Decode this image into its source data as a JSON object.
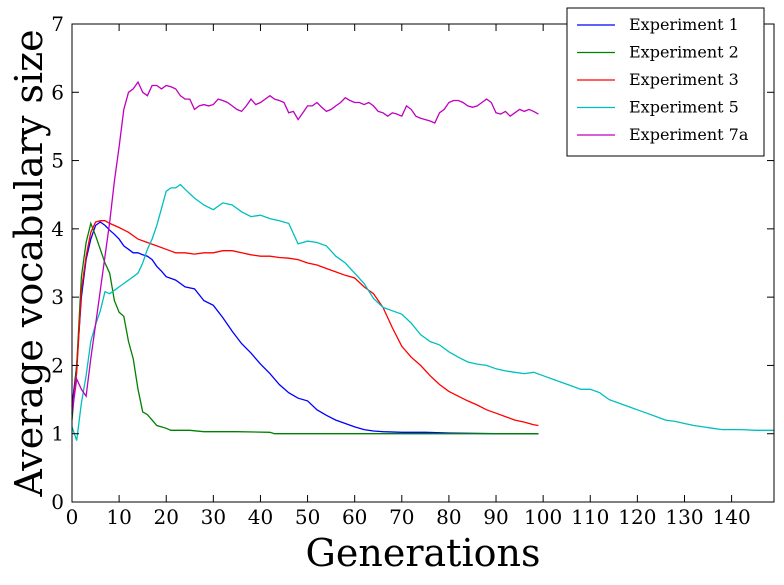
{
  "chart_data": {
    "type": "line",
    "xlabel": "Generations",
    "ylabel": "Average vocabulary size",
    "xlim": [
      0,
      149
    ],
    "ylim": [
      0,
      7
    ],
    "x_ticks": [
      0,
      10,
      20,
      30,
      40,
      50,
      60,
      70,
      80,
      90,
      100,
      110,
      120,
      130,
      140
    ],
    "y_ticks": [
      0,
      1,
      2,
      3,
      4,
      5,
      6,
      7
    ],
    "grid": false,
    "legend_position": "top-right",
    "series": [
      {
        "name": "Experiment 1",
        "color": "#0000ff",
        "points": [
          [
            0,
            1.4
          ],
          [
            1,
            2.0
          ],
          [
            2,
            3.0
          ],
          [
            3,
            3.55
          ],
          [
            4,
            3.85
          ],
          [
            5,
            4.05
          ],
          [
            6,
            4.1
          ],
          [
            7,
            4.05
          ],
          [
            8,
            3.98
          ],
          [
            9,
            3.92
          ],
          [
            10,
            3.85
          ],
          [
            11,
            3.75
          ],
          [
            12,
            3.7
          ],
          [
            13,
            3.65
          ],
          [
            14,
            3.65
          ],
          [
            15,
            3.62
          ],
          [
            16,
            3.6
          ],
          [
            17,
            3.55
          ],
          [
            18,
            3.45
          ],
          [
            19,
            3.38
          ],
          [
            20,
            3.3
          ],
          [
            22,
            3.25
          ],
          [
            24,
            3.15
          ],
          [
            26,
            3.12
          ],
          [
            28,
            2.95
          ],
          [
            30,
            2.88
          ],
          [
            32,
            2.7
          ],
          [
            34,
            2.5
          ],
          [
            36,
            2.32
          ],
          [
            38,
            2.18
          ],
          [
            40,
            2.02
          ],
          [
            42,
            1.88
          ],
          [
            44,
            1.72
          ],
          [
            46,
            1.6
          ],
          [
            48,
            1.52
          ],
          [
            50,
            1.48
          ],
          [
            52,
            1.35
          ],
          [
            54,
            1.27
          ],
          [
            56,
            1.2
          ],
          [
            58,
            1.15
          ],
          [
            60,
            1.1
          ],
          [
            62,
            1.06
          ],
          [
            64,
            1.04
          ],
          [
            66,
            1.03
          ],
          [
            70,
            1.02
          ],
          [
            75,
            1.02
          ],
          [
            80,
            1.01
          ],
          [
            90,
            1.0
          ],
          [
            99,
            1.0
          ]
        ]
      },
      {
        "name": "Experiment 2",
        "color": "#008000",
        "points": [
          [
            0,
            1.2
          ],
          [
            1,
            2.0
          ],
          [
            2,
            3.3
          ],
          [
            3,
            3.8
          ],
          [
            4,
            4.08
          ],
          [
            5,
            3.9
          ],
          [
            6,
            3.7
          ],
          [
            7,
            3.5
          ],
          [
            8,
            3.35
          ],
          [
            9,
            2.95
          ],
          [
            10,
            2.78
          ],
          [
            11,
            2.72
          ],
          [
            12,
            2.35
          ],
          [
            13,
            2.1
          ],
          [
            14,
            1.65
          ],
          [
            15,
            1.32
          ],
          [
            16,
            1.28
          ],
          [
            17,
            1.2
          ],
          [
            18,
            1.12
          ],
          [
            19,
            1.1
          ],
          [
            20,
            1.08
          ],
          [
            21,
            1.05
          ],
          [
            25,
            1.05
          ],
          [
            28,
            1.03
          ],
          [
            35,
            1.03
          ],
          [
            42,
            1.02
          ],
          [
            43,
            1.0
          ],
          [
            99,
            1.0
          ]
        ]
      },
      {
        "name": "Experiment 3",
        "color": "#ff0000",
        "points": [
          [
            0,
            1.3
          ],
          [
            1,
            1.9
          ],
          [
            2,
            3.1
          ],
          [
            3,
            3.6
          ],
          [
            4,
            3.95
          ],
          [
            5,
            4.1
          ],
          [
            6,
            4.12
          ],
          [
            7,
            4.12
          ],
          [
            8,
            4.08
          ],
          [
            10,
            4.02
          ],
          [
            12,
            3.95
          ],
          [
            14,
            3.85
          ],
          [
            16,
            3.8
          ],
          [
            18,
            3.75
          ],
          [
            20,
            3.7
          ],
          [
            22,
            3.65
          ],
          [
            24,
            3.65
          ],
          [
            26,
            3.63
          ],
          [
            28,
            3.65
          ],
          [
            30,
            3.65
          ],
          [
            32,
            3.68
          ],
          [
            34,
            3.68
          ],
          [
            36,
            3.65
          ],
          [
            38,
            3.62
          ],
          [
            40,
            3.6
          ],
          [
            42,
            3.6
          ],
          [
            44,
            3.58
          ],
          [
            46,
            3.57
          ],
          [
            48,
            3.55
          ],
          [
            50,
            3.5
          ],
          [
            52,
            3.47
          ],
          [
            54,
            3.42
          ],
          [
            56,
            3.37
          ],
          [
            58,
            3.32
          ],
          [
            60,
            3.28
          ],
          [
            62,
            3.15
          ],
          [
            64,
            3.05
          ],
          [
            66,
            2.85
          ],
          [
            68,
            2.55
          ],
          [
            70,
            2.28
          ],
          [
            72,
            2.12
          ],
          [
            74,
            2.0
          ],
          [
            76,
            1.85
          ],
          [
            78,
            1.72
          ],
          [
            80,
            1.62
          ],
          [
            82,
            1.55
          ],
          [
            84,
            1.48
          ],
          [
            86,
            1.42
          ],
          [
            88,
            1.35
          ],
          [
            90,
            1.3
          ],
          [
            92,
            1.25
          ],
          [
            94,
            1.2
          ],
          [
            96,
            1.17
          ],
          [
            98,
            1.13
          ],
          [
            99,
            1.12
          ]
        ]
      },
      {
        "name": "Experiment 5",
        "color": "#00bfbf",
        "points": [
          [
            0,
            1.1
          ],
          [
            1,
            0.9
          ],
          [
            2,
            1.45
          ],
          [
            3,
            1.85
          ],
          [
            4,
            2.35
          ],
          [
            5,
            2.6
          ],
          [
            6,
            2.8
          ],
          [
            7,
            3.08
          ],
          [
            8,
            3.05
          ],
          [
            9,
            3.1
          ],
          [
            10,
            3.15
          ],
          [
            11,
            3.2
          ],
          [
            12,
            3.25
          ],
          [
            13,
            3.3
          ],
          [
            14,
            3.35
          ],
          [
            15,
            3.5
          ],
          [
            16,
            3.7
          ],
          [
            17,
            3.85
          ],
          [
            18,
            4.05
          ],
          [
            19,
            4.3
          ],
          [
            20,
            4.55
          ],
          [
            21,
            4.6
          ],
          [
            22,
            4.6
          ],
          [
            23,
            4.65
          ],
          [
            24,
            4.58
          ],
          [
            26,
            4.45
          ],
          [
            28,
            4.35
          ],
          [
            30,
            4.28
          ],
          [
            32,
            4.38
          ],
          [
            34,
            4.35
          ],
          [
            36,
            4.25
          ],
          [
            38,
            4.18
          ],
          [
            40,
            4.2
          ],
          [
            42,
            4.15
          ],
          [
            44,
            4.12
          ],
          [
            46,
            4.08
          ],
          [
            48,
            3.78
          ],
          [
            50,
            3.82
          ],
          [
            52,
            3.8
          ],
          [
            54,
            3.75
          ],
          [
            56,
            3.6
          ],
          [
            58,
            3.5
          ],
          [
            60,
            3.35
          ],
          [
            62,
            3.2
          ],
          [
            64,
            2.98
          ],
          [
            66,
            2.85
          ],
          [
            68,
            2.8
          ],
          [
            70,
            2.75
          ],
          [
            72,
            2.62
          ],
          [
            74,
            2.45
          ],
          [
            76,
            2.35
          ],
          [
            78,
            2.3
          ],
          [
            80,
            2.2
          ],
          [
            82,
            2.12
          ],
          [
            84,
            2.05
          ],
          [
            86,
            2.02
          ],
          [
            88,
            2.0
          ],
          [
            90,
            1.95
          ],
          [
            92,
            1.92
          ],
          [
            94,
            1.9
          ],
          [
            96,
            1.88
          ],
          [
            98,
            1.9
          ],
          [
            100,
            1.85
          ],
          [
            102,
            1.8
          ],
          [
            104,
            1.75
          ],
          [
            106,
            1.7
          ],
          [
            108,
            1.65
          ],
          [
            110,
            1.65
          ],
          [
            112,
            1.6
          ],
          [
            114,
            1.5
          ],
          [
            116,
            1.45
          ],
          [
            118,
            1.4
          ],
          [
            120,
            1.35
          ],
          [
            122,
            1.3
          ],
          [
            124,
            1.25
          ],
          [
            126,
            1.2
          ],
          [
            128,
            1.18
          ],
          [
            130,
            1.15
          ],
          [
            132,
            1.12
          ],
          [
            134,
            1.1
          ],
          [
            136,
            1.08
          ],
          [
            138,
            1.06
          ],
          [
            140,
            1.06
          ],
          [
            142,
            1.06
          ],
          [
            145,
            1.05
          ],
          [
            149,
            1.05
          ]
        ]
      },
      {
        "name": "Experiment 7a",
        "color": "#bf00bf",
        "points": [
          [
            0,
            1.3
          ],
          [
            1,
            1.8
          ],
          [
            2,
            1.65
          ],
          [
            3,
            1.55
          ],
          [
            4,
            2.1
          ],
          [
            5,
            2.6
          ],
          [
            6,
            3.1
          ],
          [
            7,
            3.6
          ],
          [
            8,
            4.1
          ],
          [
            9,
            4.7
          ],
          [
            10,
            5.2
          ],
          [
            11,
            5.75
          ],
          [
            12,
            6.0
          ],
          [
            13,
            6.05
          ],
          [
            14,
            6.15
          ],
          [
            15,
            6.0
          ],
          [
            16,
            5.95
          ],
          [
            17,
            6.1
          ],
          [
            18,
            6.1
          ],
          [
            19,
            6.05
          ],
          [
            20,
            6.1
          ],
          [
            21,
            6.08
          ],
          [
            22,
            6.05
          ],
          [
            23,
            5.95
          ],
          [
            24,
            5.9
          ],
          [
            25,
            5.9
          ],
          [
            26,
            5.75
          ],
          [
            27,
            5.8
          ],
          [
            28,
            5.82
          ],
          [
            29,
            5.8
          ],
          [
            30,
            5.82
          ],
          [
            31,
            5.9
          ],
          [
            32,
            5.88
          ],
          [
            33,
            5.85
          ],
          [
            34,
            5.8
          ],
          [
            35,
            5.75
          ],
          [
            36,
            5.72
          ],
          [
            37,
            5.8
          ],
          [
            38,
            5.9
          ],
          [
            39,
            5.82
          ],
          [
            40,
            5.85
          ],
          [
            41,
            5.9
          ],
          [
            42,
            5.95
          ],
          [
            43,
            5.9
          ],
          [
            44,
            5.88
          ],
          [
            45,
            5.85
          ],
          [
            46,
            5.7
          ],
          [
            47,
            5.72
          ],
          [
            48,
            5.6
          ],
          [
            49,
            5.7
          ],
          [
            50,
            5.8
          ],
          [
            51,
            5.8
          ],
          [
            52,
            5.85
          ],
          [
            53,
            5.78
          ],
          [
            54,
            5.72
          ],
          [
            55,
            5.75
          ],
          [
            56,
            5.8
          ],
          [
            57,
            5.85
          ],
          [
            58,
            5.92
          ],
          [
            59,
            5.88
          ],
          [
            60,
            5.85
          ],
          [
            61,
            5.85
          ],
          [
            62,
            5.82
          ],
          [
            63,
            5.85
          ],
          [
            64,
            5.8
          ],
          [
            65,
            5.72
          ],
          [
            66,
            5.7
          ],
          [
            67,
            5.65
          ],
          [
            68,
            5.7
          ],
          [
            69,
            5.68
          ],
          [
            70,
            5.65
          ],
          [
            71,
            5.8
          ],
          [
            72,
            5.75
          ],
          [
            73,
            5.65
          ],
          [
            74,
            5.62
          ],
          [
            75,
            5.6
          ],
          [
            76,
            5.58
          ],
          [
            77,
            5.55
          ],
          [
            78,
            5.7
          ],
          [
            79,
            5.75
          ],
          [
            80,
            5.85
          ],
          [
            81,
            5.88
          ],
          [
            82,
            5.88
          ],
          [
            83,
            5.85
          ],
          [
            84,
            5.8
          ],
          [
            85,
            5.78
          ],
          [
            86,
            5.8
          ],
          [
            87,
            5.85
          ],
          [
            88,
            5.9
          ],
          [
            89,
            5.85
          ],
          [
            90,
            5.7
          ],
          [
            91,
            5.68
          ],
          [
            92,
            5.72
          ],
          [
            93,
            5.65
          ],
          [
            94,
            5.7
          ],
          [
            95,
            5.75
          ],
          [
            96,
            5.72
          ],
          [
            97,
            5.75
          ],
          [
            98,
            5.72
          ],
          [
            99,
            5.68
          ]
        ]
      }
    ]
  }
}
